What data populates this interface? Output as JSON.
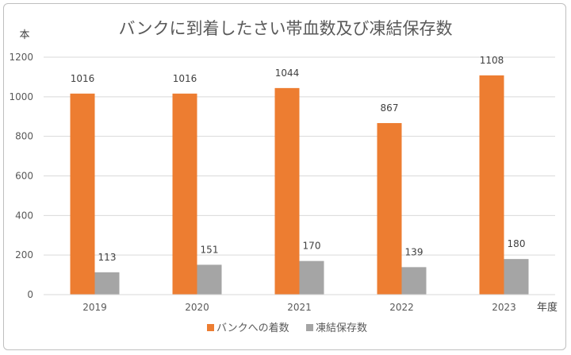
{
  "chart_data": {
    "type": "bar",
    "title": "バンクに到着したさい帯血数及び凍結保存数",
    "ylabel": "本",
    "xlabel": "年度",
    "categories": [
      "2019",
      "2020",
      "2021",
      "2022",
      "2023"
    ],
    "series": [
      {
        "name": "バンクへの着数",
        "values": [
          1016,
          1016,
          1044,
          867,
          1108
        ],
        "color": "#ed7d31"
      },
      {
        "name": "凍結保存数",
        "values": [
          113,
          151,
          170,
          139,
          180
        ],
        "color": "#a5a5a5"
      }
    ],
    "ylim": [
      0,
      1200
    ],
    "yticks": [
      "0",
      "200",
      "400",
      "600",
      "800",
      "1000",
      "1200"
    ],
    "grid": true,
    "legend_position": "bottom"
  }
}
